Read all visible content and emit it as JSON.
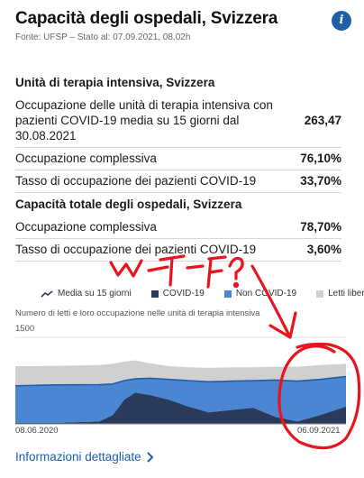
{
  "header": {
    "title": "Capacità degli ospedali, Svizzera",
    "source": "Fonte: UFSP – Stato al: 07.09.2021, 08.02h",
    "info_label": "i"
  },
  "icu": {
    "title": "Unità di terapia intensiva, Svizzera",
    "rows": [
      {
        "label": "Occupazione delle unità di terapia intensiva con pazienti COVID-19 media su 15 giorni dal 30.08.2021",
        "value": "263,47"
      },
      {
        "label": "Occupazione complessiva",
        "value": "76,10%"
      },
      {
        "label": "Tasso di occupazione dei pazienti COVID-19",
        "value": "33,70%"
      }
    ]
  },
  "hospital": {
    "title": "Capacità totale degli ospedali, Svizzera",
    "rows": [
      {
        "label": "Occupazione complessiva",
        "value": "78,70%"
      },
      {
        "label": "Tasso di occupazione dei pazienti COVID-19",
        "value": "3,60%"
      }
    ]
  },
  "legend": {
    "items": [
      {
        "label": "Media su 15 giorni",
        "icon": "trend-line-icon"
      },
      {
        "label": "COVID-19",
        "color": "#2a3a5c"
      },
      {
        "label": "Non COVID-19",
        "color": "#4a86d4"
      },
      {
        "label": "Letti liberi",
        "color": "#d0d0d0"
      }
    ]
  },
  "chart_data": {
    "type": "area",
    "subtitle": "Numero di letti e loro occupazione nelle unità di terapia intensiva",
    "ylim": [
      0,
      1500
    ],
    "ytick_label": "1500",
    "x_labels": [
      "08.06.2020",
      "06.09.2021"
    ],
    "x_start": "2020-06-08",
    "x_end": "2021-09-06",
    "series": [
      {
        "name": "COVID-19",
        "color": "#2a3a5c",
        "x": [
          "2020-06-08",
          "2020-08-01",
          "2020-10-01",
          "2020-10-20",
          "2020-11-05",
          "2020-11-20",
          "2020-12-10",
          "2021-01-05",
          "2021-02-01",
          "2021-03-01",
          "2021-04-01",
          "2021-05-01",
          "2021-06-01",
          "2021-07-01",
          "2021-08-01",
          "2021-09-06"
        ],
        "values": [
          20,
          15,
          40,
          150,
          420,
          540,
          500,
          420,
          300,
          200,
          240,
          280,
          120,
          40,
          150,
          300
        ]
      },
      {
        "name": "Non COVID-19",
        "color": "#4a86d4",
        "x": [
          "2020-06-08",
          "2020-08-01",
          "2020-10-01",
          "2020-10-20",
          "2020-11-05",
          "2020-11-20",
          "2020-12-10",
          "2021-01-05",
          "2021-02-01",
          "2021-03-01",
          "2021-04-01",
          "2021-05-01",
          "2021-06-01",
          "2021-07-01",
          "2021-08-01",
          "2021-09-06"
        ],
        "values": [
          640,
          660,
          640,
          540,
          330,
          240,
          290,
          350,
          450,
          530,
          500,
          470,
          640,
          700,
          620,
          520
        ]
      },
      {
        "name": "Letti liberi",
        "color": "#d0d0d0",
        "x": [
          "2020-06-08",
          "2020-08-01",
          "2020-10-01",
          "2020-10-20",
          "2020-11-05",
          "2020-11-20",
          "2020-12-10",
          "2021-01-05",
          "2021-02-01",
          "2021-03-01",
          "2021-04-01",
          "2021-05-01",
          "2021-06-01",
          "2021-07-01",
          "2021-08-01",
          "2021-09-06"
        ],
        "values": [
          340,
          330,
          340,
          350,
          330,
          320,
          260,
          230,
          230,
          240,
          240,
          230,
          230,
          250,
          250,
          220
        ]
      }
    ],
    "moving_average": {
      "name": "Media su 15 giorni",
      "x": [
        "2020-06-08",
        "2020-08-01",
        "2020-10-01",
        "2020-10-20",
        "2020-11-05",
        "2020-11-20",
        "2020-12-10",
        "2021-01-05",
        "2021-02-01",
        "2021-03-01",
        "2021-04-01",
        "2021-05-01",
        "2021-06-01",
        "2021-07-01",
        "2021-08-01",
        "2021-09-06"
      ],
      "values": [
        660,
        675,
        680,
        690,
        750,
        780,
        790,
        770,
        750,
        730,
        740,
        750,
        760,
        740,
        770,
        820
      ]
    }
  },
  "footer": {
    "detail_link": "Informazioni dettagliate",
    "chevron_icon": "chevron-right-icon"
  },
  "annotations": {
    "handwriting": "W T F ?",
    "arrow": "red-arrow",
    "circle": "red-circle"
  }
}
